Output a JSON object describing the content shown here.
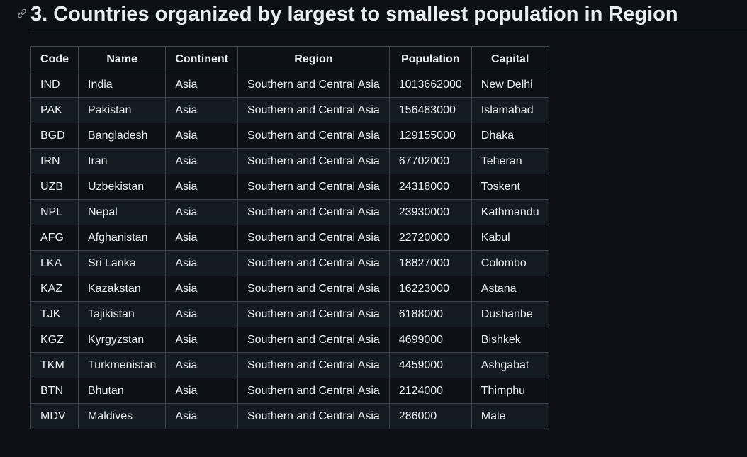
{
  "heading": {
    "title": "3. Countries organized by largest to smallest population in Region"
  },
  "table": {
    "headers": [
      "Code",
      "Name",
      "Continent",
      "Region",
      "Population",
      "Capital"
    ],
    "rows": [
      [
        "IND",
        "India",
        "Asia",
        "Southern and Central Asia",
        1013662000,
        "New Delhi"
      ],
      [
        "PAK",
        "Pakistan",
        "Asia",
        "Southern and Central Asia",
        156483000,
        "Islamabad"
      ],
      [
        "BGD",
        "Bangladesh",
        "Asia",
        "Southern and Central Asia",
        129155000,
        "Dhaka"
      ],
      [
        "IRN",
        "Iran",
        "Asia",
        "Southern and Central Asia",
        67702000,
        "Teheran"
      ],
      [
        "UZB",
        "Uzbekistan",
        "Asia",
        "Southern and Central Asia",
        24318000,
        "Toskent"
      ],
      [
        "NPL",
        "Nepal",
        "Asia",
        "Southern and Central Asia",
        23930000,
        "Kathmandu"
      ],
      [
        "AFG",
        "Afghanistan",
        "Asia",
        "Southern and Central Asia",
        22720000,
        "Kabul"
      ],
      [
        "LKA",
        "Sri Lanka",
        "Asia",
        "Southern and Central Asia",
        18827000,
        "Colombo"
      ],
      [
        "KAZ",
        "Kazakstan",
        "Asia",
        "Southern and Central Asia",
        16223000,
        "Astana"
      ],
      [
        "TJK",
        "Tajikistan",
        "Asia",
        "Southern and Central Asia",
        6188000,
        "Dushanbe"
      ],
      [
        "KGZ",
        "Kyrgyzstan",
        "Asia",
        "Southern and Central Asia",
        4699000,
        "Bishkek"
      ],
      [
        "TKM",
        "Turkmenistan",
        "Asia",
        "Southern and Central Asia",
        4459000,
        "Ashgabat"
      ],
      [
        "BTN",
        "Bhutan",
        "Asia",
        "Southern and Central Asia",
        2124000,
        "Thimphu"
      ],
      [
        "MDV",
        "Maldives",
        "Asia",
        "Southern and Central Asia",
        286000,
        "Male"
      ]
    ]
  }
}
